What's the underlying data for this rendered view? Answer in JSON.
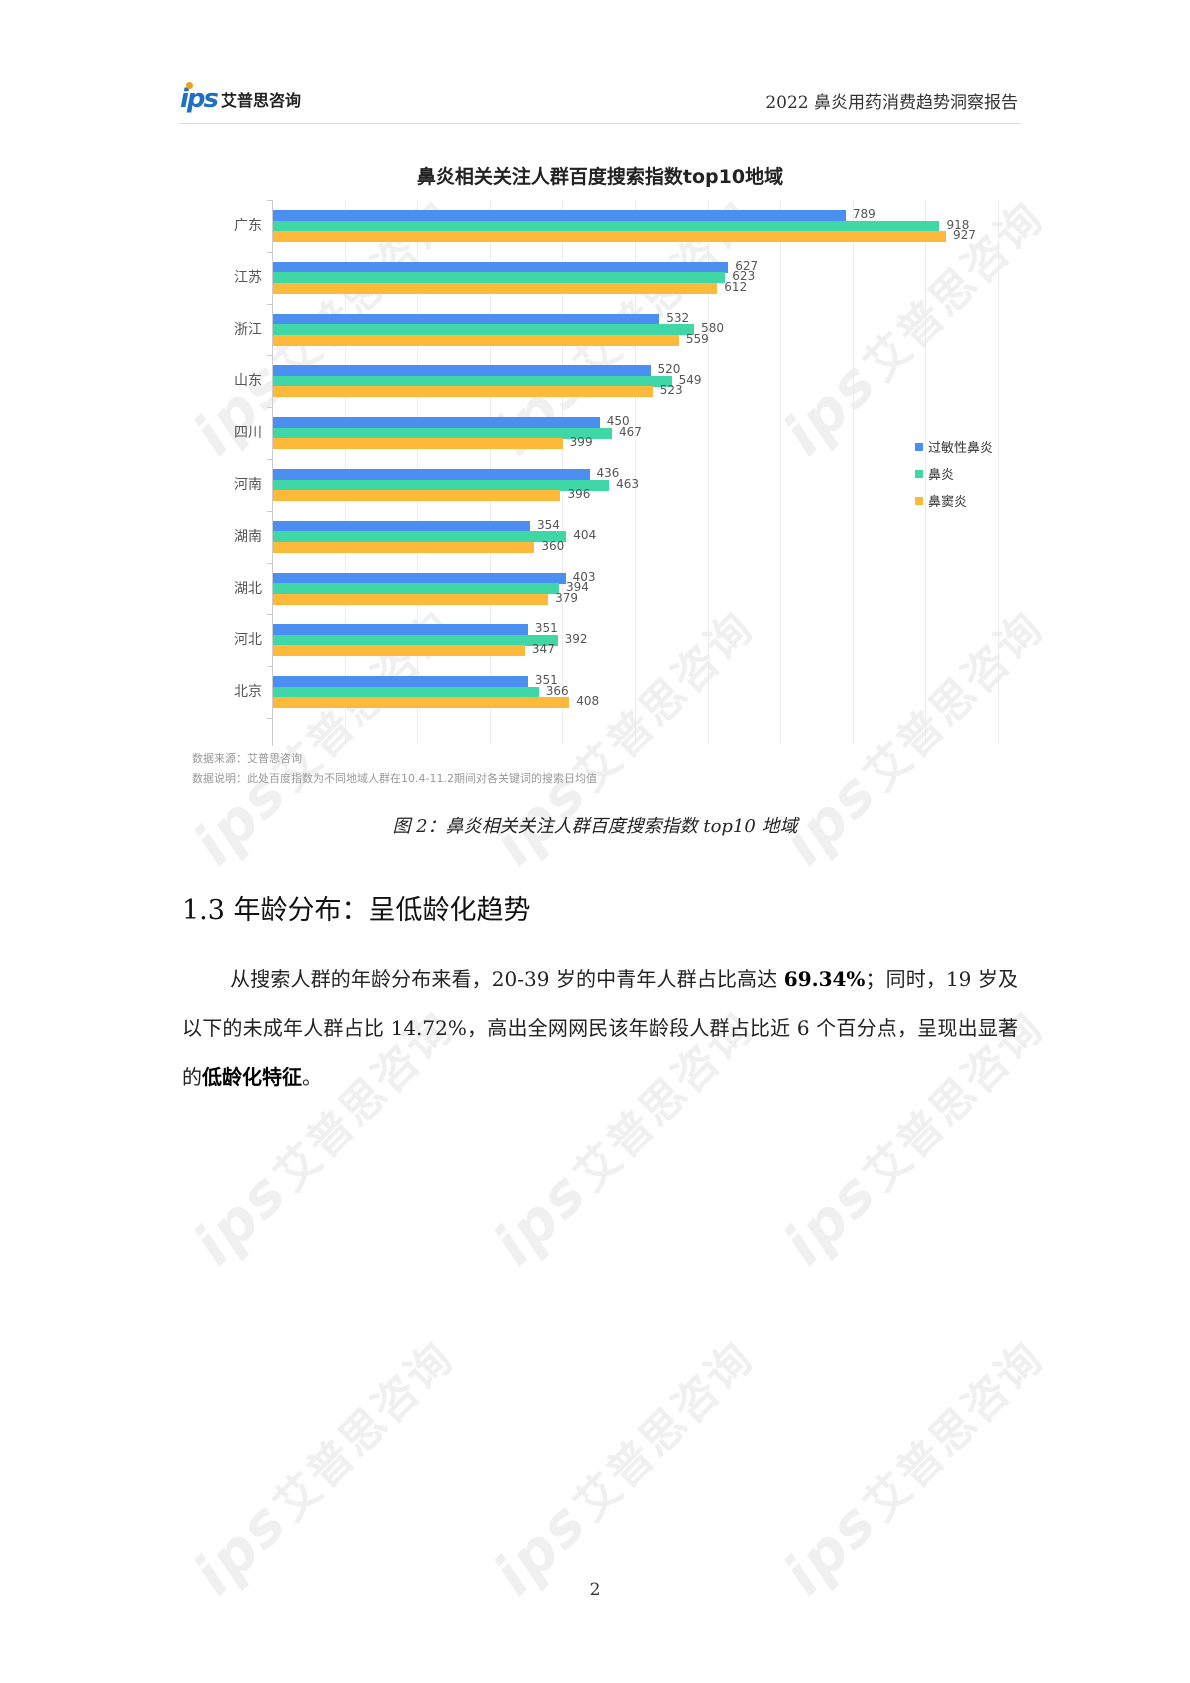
{
  "header": {
    "logo_mark": "ips",
    "logo_text": "艾普思咨询",
    "report_title": "2022 鼻炎用药消费趋势洞察报告"
  },
  "watermark": {
    "logo": "ips",
    "text": "艾普思咨询"
  },
  "chart_data": {
    "type": "bar",
    "orientation": "horizontal",
    "title": "鼻炎相关关注人群百度搜索指数top10地域",
    "categories": [
      "广东",
      "江苏",
      "浙江",
      "山东",
      "四川",
      "河南",
      "湖南",
      "湖北",
      "河北",
      "北京"
    ],
    "series": [
      {
        "name": "过敏性鼻炎",
        "color": "#4b8ff0",
        "values": [
          789,
          627,
          532,
          520,
          450,
          436,
          354,
          403,
          351,
          351
        ]
      },
      {
        "name": "鼻炎",
        "color": "#3fd7a6",
        "values": [
          918,
          623,
          580,
          549,
          467,
          463,
          404,
          394,
          392,
          366
        ]
      },
      {
        "name": "鼻窦炎",
        "color": "#fdba3a",
        "values": [
          927,
          612,
          559,
          523,
          399,
          396,
          360,
          379,
          347,
          408
        ]
      }
    ],
    "xlabel": "",
    "ylabel": "",
    "xlim": [
      0,
      1000
    ],
    "grid": true,
    "gridline_step": 100,
    "legend_position": "right",
    "data_labels": true,
    "notes": [
      "数据来源：艾普思咨询",
      "数据说明：此处百度指数为不同地域人群在10.4-11.2期间对各关键词的搜索日均值"
    ]
  },
  "caption": "图 2：鼻炎相关关注人群百度搜索指数 top10 地域",
  "section": {
    "heading": "1.3  年龄分布：呈低龄化趋势",
    "paragraph": {
      "part1": "从搜索人群的年龄分布来看，20-39 岁的中青年人群占比高达 ",
      "bold1": "69.34%",
      "part2": "；同时，19 岁及以下的未成年人群占比 14.72%，高出全网网民该年龄段人群占比近 6 个百分点，呈现出显著的",
      "bold2": "低龄化特征",
      "part3": "。"
    }
  },
  "page_number": "2"
}
